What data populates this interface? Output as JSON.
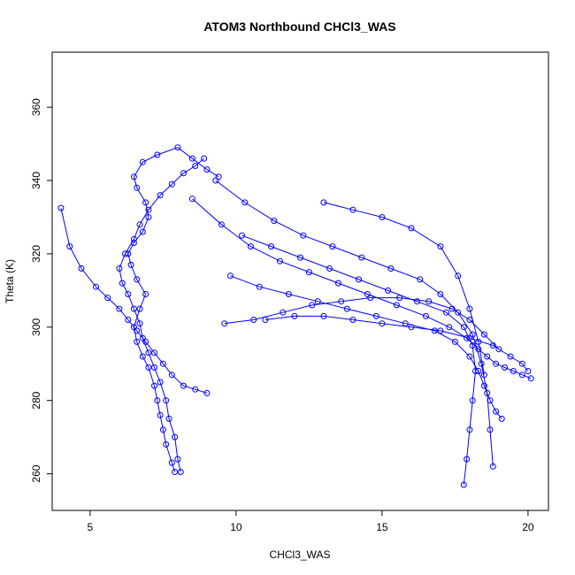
{
  "chart_data": {
    "type": "line",
    "title": "ATOM3 Northbound CHCl3_WAS",
    "xlabel": "CHCl3_WAS",
    "ylabel": "Theta (K)",
    "xlim": [
      3.7,
      20.7
    ],
    "ylim": [
      250,
      375
    ],
    "xticks": [
      5,
      10,
      15,
      20
    ],
    "yticks": [
      260,
      280,
      300,
      320,
      340,
      360
    ],
    "grid": false,
    "legend": "none",
    "marker": "open-circle",
    "color": "#0000ff",
    "series": [
      {
        "x": [
          7.9,
          7.8,
          7.6,
          7.5,
          7.4,
          7.3,
          7.2,
          7.0,
          6.8,
          6.6,
          6.5,
          6.7,
          6.9,
          6.6,
          6.4,
          6.3,
          6.5,
          6.8,
          7.0,
          6.9,
          6.6,
          6.5,
          6.8,
          7.3,
          8.0,
          8.5,
          9.0,
          9.4
        ],
        "y": [
          260.5,
          263,
          268,
          272,
          276,
          280,
          284,
          289,
          292,
          296,
          300,
          305,
          309,
          313,
          317,
          320,
          323,
          326,
          330,
          334,
          338,
          341,
          345,
          347,
          349,
          346,
          343,
          341
        ]
      },
      {
        "x": [
          8.1,
          8.0,
          7.9,
          7.7,
          7.6,
          7.4,
          7.2,
          7.0,
          6.8,
          6.7,
          6.5,
          6.3,
          6.1,
          6.0,
          6.2,
          6.5,
          6.7,
          7.0,
          7.4,
          7.8,
          8.2,
          8.6,
          8.9
        ],
        "y": [
          260.5,
          264,
          270,
          275,
          280,
          285,
          289,
          293,
          297,
          301,
          305,
          309,
          312,
          316,
          320,
          324,
          328,
          332,
          336,
          339,
          342,
          344,
          346
        ]
      },
      {
        "x": [
          4.0,
          4.3,
          4.7,
          5.2,
          5.6,
          6.0,
          6.3,
          6.6,
          6.9,
          7.2,
          7.5,
          7.8,
          8.2,
          8.6,
          9.0
        ],
        "y": [
          332.5,
          322,
          316,
          311,
          308,
          305,
          302,
          299,
          296,
          293,
          290,
          287,
          284,
          283,
          282
        ]
      },
      {
        "x": [
          8.5,
          9.5,
          10.5,
          11.5,
          12.5,
          13.5,
          14.5,
          15.5,
          16.5,
          17.3,
          17.9,
          18.3,
          18.6,
          18.9,
          19.2,
          19.5,
          19.8,
          20.1
        ],
        "y": [
          335,
          328,
          322,
          318,
          315,
          312,
          309,
          306,
          303,
          300,
          297,
          294,
          292,
          290,
          289,
          288,
          287,
          286
        ]
      },
      {
        "x": [
          9.8,
          10.8,
          11.8,
          12.8,
          13.8,
          14.8,
          15.8,
          16.8,
          17.5,
          18.0,
          18.3,
          18.5,
          18.7,
          18.9,
          19.1
        ],
        "y": [
          314,
          311,
          309,
          307,
          305,
          303,
          301,
          299,
          296,
          292,
          288,
          284,
          280,
          277,
          275
        ]
      },
      {
        "x": [
          10.2,
          11.2,
          12.2,
          13.2,
          14.2,
          15.2,
          16.2,
          17.2,
          17.8,
          18.1,
          18.2,
          18.1,
          18.0,
          17.9,
          17.8
        ],
        "y": [
          325,
          322,
          319,
          316,
          313,
          310,
          307,
          304,
          300,
          295,
          288,
          280,
          272,
          264,
          257
        ]
      },
      {
        "x": [
          9.3,
          10.3,
          11.3,
          12.3,
          13.3,
          14.3,
          15.3,
          16.3,
          17.0,
          17.6,
          18.1,
          18.4,
          18.6,
          18.7,
          18.8
        ],
        "y": [
          340,
          334,
          329,
          325,
          322,
          319,
          316,
          313,
          309,
          304,
          298,
          290,
          282,
          272,
          262
        ]
      },
      {
        "x": [
          11.0,
          12.0,
          13.0,
          14.0,
          15.0,
          16.0,
          17.0,
          18.0,
          18.8,
          19.4,
          19.8,
          20.0
        ],
        "y": [
          302,
          303,
          303,
          302,
          301,
          300,
          299,
          297,
          295,
          292,
          290,
          288
        ]
      },
      {
        "x": [
          13.0,
          14.0,
          15.0,
          16.0,
          17.0,
          17.6,
          18.0,
          18.3,
          18.5
        ],
        "y": [
          334,
          332,
          330,
          327,
          322,
          314,
          305,
          296,
          287
        ]
      },
      {
        "x": [
          9.6,
          10.6,
          11.6,
          12.6,
          13.6,
          14.6,
          15.6,
          16.6,
          17.4,
          18.0,
          18.5,
          19.0
        ],
        "y": [
          301,
          302,
          304,
          306,
          307,
          308,
          308,
          307,
          305,
          302,
          298,
          294
        ]
      }
    ]
  }
}
